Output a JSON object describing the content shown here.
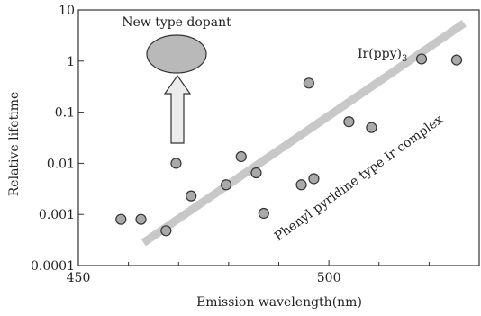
{
  "chart_data": {
    "type": "scatter",
    "title": "",
    "xlabel": "Emission wavelength(nm)",
    "ylabel": "Relative lifetime",
    "xlim": [
      450,
      530
    ],
    "ylim": [
      0.0001,
      10
    ],
    "yscale": "log",
    "x_ticks": [
      {
        "value": 450,
        "label": "450"
      },
      {
        "value": 500,
        "label": "500"
      }
    ],
    "x_minor_ticks": [
      460,
      470,
      480,
      490,
      510,
      520
    ],
    "y_ticks": [
      {
        "value": 0.0001,
        "label": "0.0001"
      },
      {
        "value": 0.001,
        "label": "0.001"
      },
      {
        "value": 0.01,
        "label": "0.01"
      },
      {
        "value": 0.1,
        "label": "0.1"
      },
      {
        "value": 1,
        "label": "1"
      },
      {
        "value": 10,
        "label": "10"
      }
    ],
    "grid": false,
    "points": [
      {
        "x": 458.5,
        "y": 0.0008
      },
      {
        "x": 462.5,
        "y": 0.0008
      },
      {
        "x": 467.5,
        "y": 0.00048
      },
      {
        "x": 469.5,
        "y": 0.01
      },
      {
        "x": 472.5,
        "y": 0.0023
      },
      {
        "x": 479.5,
        "y": 0.0038
      },
      {
        "x": 482.5,
        "y": 0.0135
      },
      {
        "x": 485.5,
        "y": 0.0065
      },
      {
        "x": 487.0,
        "y": 0.00105
      },
      {
        "x": 494.5,
        "y": 0.0038
      },
      {
        "x": 496.0,
        "y": 0.37
      },
      {
        "x": 497.0,
        "y": 0.005
      },
      {
        "x": 504.0,
        "y": 0.065
      },
      {
        "x": 508.5,
        "y": 0.05
      },
      {
        "x": 518.5,
        "y": 1.1
      },
      {
        "x": 525.5,
        "y": 1.05
      }
    ],
    "trend_line": {
      "x": [
        463,
        527
      ],
      "y": [
        0.00028,
        5.5
      ]
    },
    "annotations": {
      "new_type": "New type dopant",
      "irppy_main": "Ir(ppy)",
      "irppy_sub": "3",
      "trend_label": "Phenyl pyridine type Ir complex"
    },
    "colors": {
      "marker_fill": "#a9a9a9",
      "marker_stroke": "#333333",
      "trend": "#c8c8c8",
      "ellipse_fill": "#b9b9b9",
      "arrow_fill": "#ececec",
      "axis": "#333333"
    }
  }
}
